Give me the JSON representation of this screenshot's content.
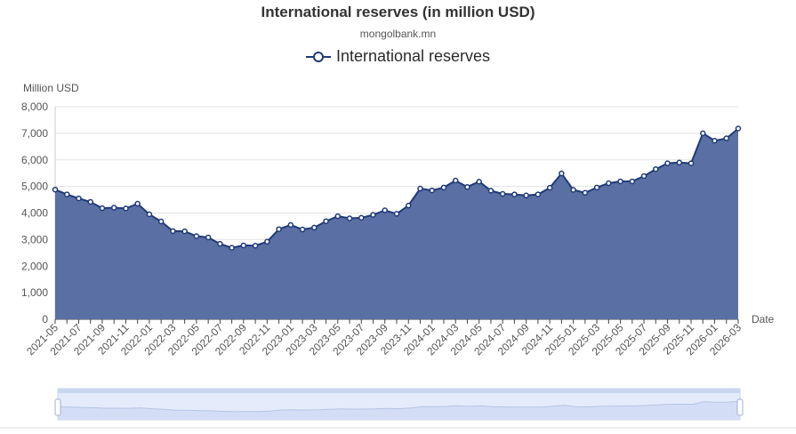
{
  "chart_data": {
    "type": "area",
    "title": "International reserves (in million USD)",
    "subtitle": "mongolbank.mn",
    "ylabel": "Million USD",
    "xlabel": "Date",
    "ylim": [
      0,
      8000
    ],
    "yticks": [
      "0",
      "1,000",
      "2,000",
      "3,000",
      "4,000",
      "5,000",
      "6,000",
      "7,000",
      "8,000"
    ],
    "xtick_labels": [
      "2021-05",
      "2021-07",
      "2021-09",
      "2021-11",
      "2022-01",
      "2022-03",
      "2022-05",
      "2022-07",
      "2022-09",
      "2022-11",
      "2023-01",
      "2023-03",
      "2023-05",
      "2023-07",
      "2023-09",
      "2023-11",
      "2024-01",
      "2024-03",
      "2024-05",
      "2024-07",
      "2024-09",
      "2024-11",
      "2025-01",
      "2025-03",
      "2025-05",
      "2025-07",
      "2025-09",
      "2025-11",
      "2026-01",
      "2026-03"
    ],
    "grid": true,
    "legend_position": "top-center",
    "series": [
      {
        "name": "International reserves",
        "color": "#1f3a7a",
        "fill": "#5a6fa3",
        "x": [
          "2021-05",
          "2021-06",
          "2021-07",
          "2021-08",
          "2021-09",
          "2021-10",
          "2021-11",
          "2021-12",
          "2022-01",
          "2022-02",
          "2022-03",
          "2022-04",
          "2022-05",
          "2022-06",
          "2022-07",
          "2022-08",
          "2022-09",
          "2022-10",
          "2022-11",
          "2022-12",
          "2023-01",
          "2023-02",
          "2023-03",
          "2023-04",
          "2023-05",
          "2023-06",
          "2023-07",
          "2023-08",
          "2023-09",
          "2023-10",
          "2023-11",
          "2023-12",
          "2024-01",
          "2024-02",
          "2024-03",
          "2024-04",
          "2024-05",
          "2024-06",
          "2024-07",
          "2024-08",
          "2024-09",
          "2024-10",
          "2024-11",
          "2024-12",
          "2025-01",
          "2025-02",
          "2025-03",
          "2025-04",
          "2025-05",
          "2025-06",
          "2025-07",
          "2025-08",
          "2025-09",
          "2025-10",
          "2025-11",
          "2025-12",
          "2026-01",
          "2026-02",
          "2026-03"
        ],
        "values": [
          4880,
          4700,
          4550,
          4420,
          4180,
          4200,
          4170,
          4350,
          3950,
          3680,
          3320,
          3310,
          3130,
          3080,
          2840,
          2690,
          2780,
          2770,
          2920,
          3390,
          3550,
          3380,
          3450,
          3690,
          3880,
          3800,
          3820,
          3930,
          4100,
          3970,
          4280,
          4920,
          4850,
          4960,
          5220,
          4980,
          5180,
          4840,
          4720,
          4700,
          4660,
          4700,
          4950,
          5490,
          4870,
          4760,
          4960,
          5120,
          5190,
          5190,
          5390,
          5650,
          5870,
          5900,
          5870,
          7000,
          6720,
          6810,
          7180
        ]
      }
    ]
  }
}
